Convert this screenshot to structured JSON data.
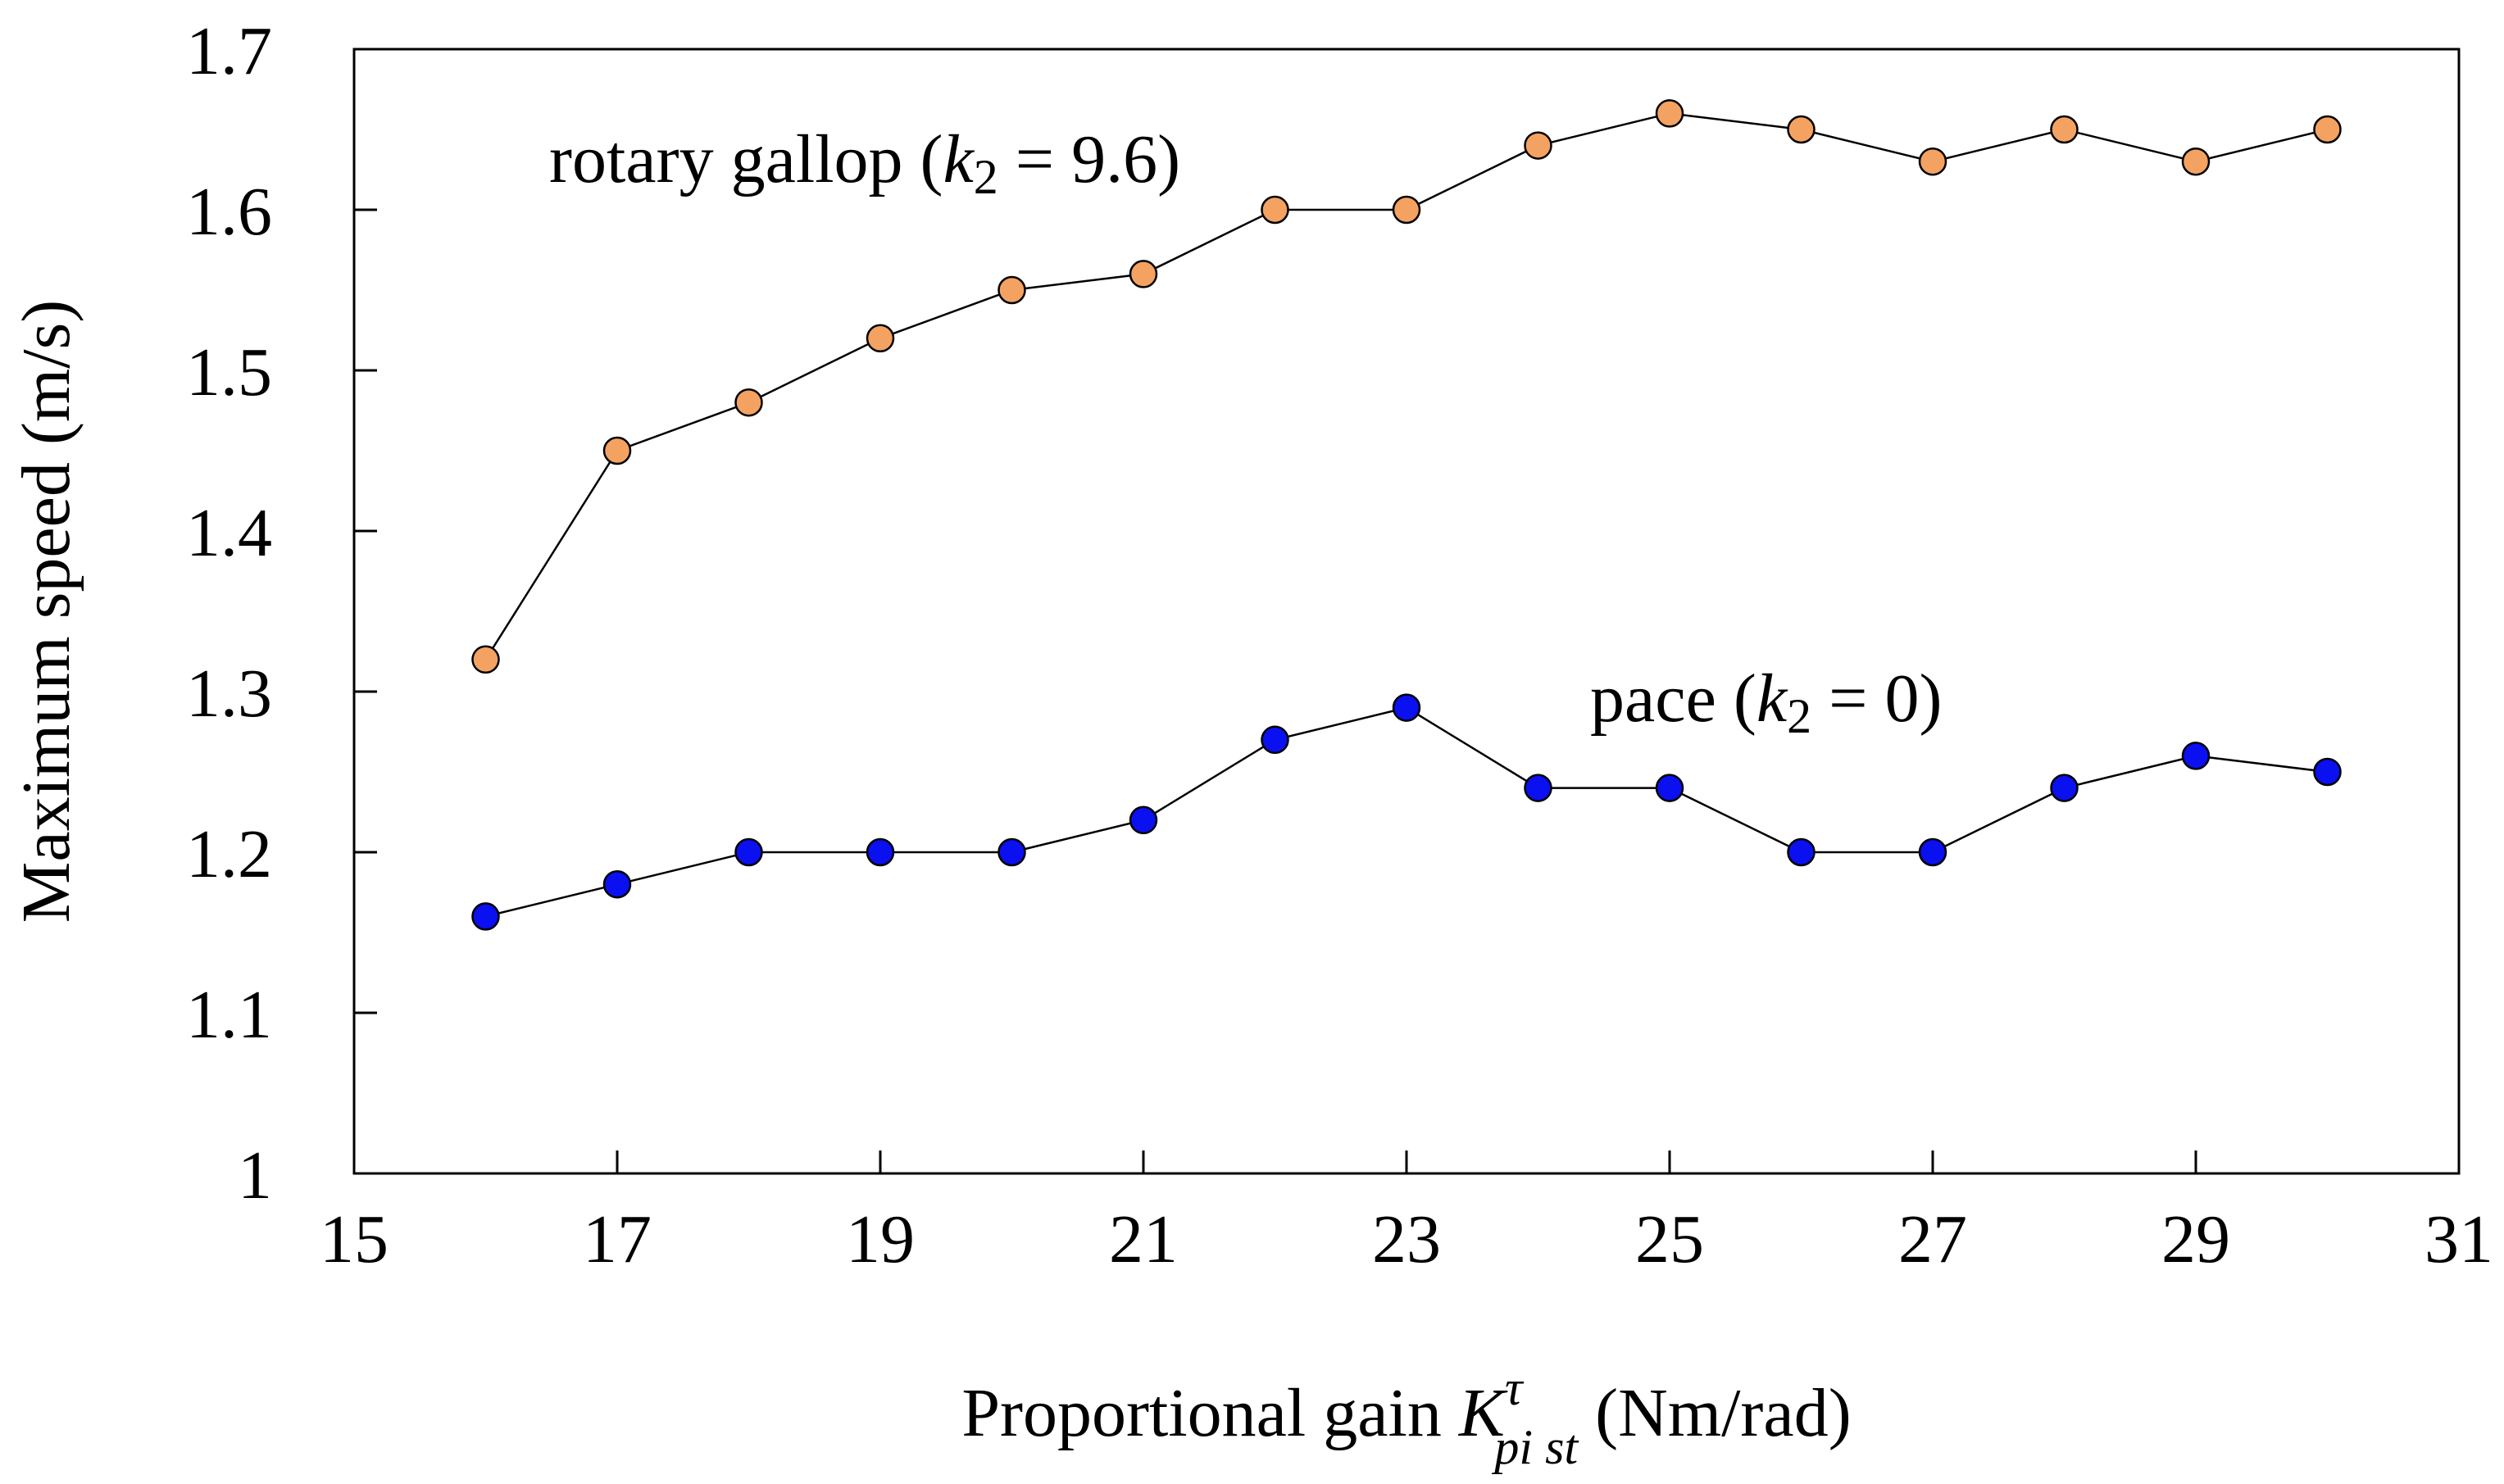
{
  "chart_data": {
    "type": "line",
    "title": "",
    "xlabel": {
      "prefix": "Proportional gain ",
      "symbol": "K",
      "superscript": "τ",
      "subscript": "pi st",
      "suffix": " (Nm/rad)"
    },
    "ylabel": "Maximum speed (m/s)",
    "xlim": [
      15,
      31
    ],
    "ylim": [
      1,
      1.7
    ],
    "xticks": [
      15,
      17,
      19,
      21,
      23,
      25,
      27,
      29,
      31
    ],
    "yticks": [
      1,
      1.1,
      1.2,
      1.3,
      1.4,
      1.5,
      1.6,
      1.7
    ],
    "ytick_labels": [
      "1",
      "1.1",
      "1.2",
      "1.3",
      "1.4",
      "1.5",
      "1.6",
      "1.7"
    ],
    "x": [
      16,
      17,
      18,
      19,
      20,
      21,
      22,
      23,
      24,
      25,
      26,
      27,
      28,
      29,
      30
    ],
    "series": [
      {
        "name": "rotary gallop",
        "label_prefix": "rotary gallop (",
        "label_var": "k",
        "label_sub": "2",
        "label_rest": " = 9.6)",
        "color": "#f4a261",
        "values": [
          1.32,
          1.45,
          1.48,
          1.52,
          1.55,
          1.56,
          1.6,
          1.6,
          1.64,
          1.66,
          1.65,
          1.63,
          1.65,
          1.63,
          1.65
        ]
      },
      {
        "name": "pace",
        "label_prefix": "pace (",
        "label_var": "k",
        "label_sub": "2",
        "label_rest": " = 0)",
        "color": "#0a10f0",
        "values": [
          1.16,
          1.18,
          1.2,
          1.2,
          1.2,
          1.22,
          1.27,
          1.29,
          1.24,
          1.24,
          1.2,
          1.2,
          1.24,
          1.26,
          1.25
        ]
      }
    ]
  }
}
